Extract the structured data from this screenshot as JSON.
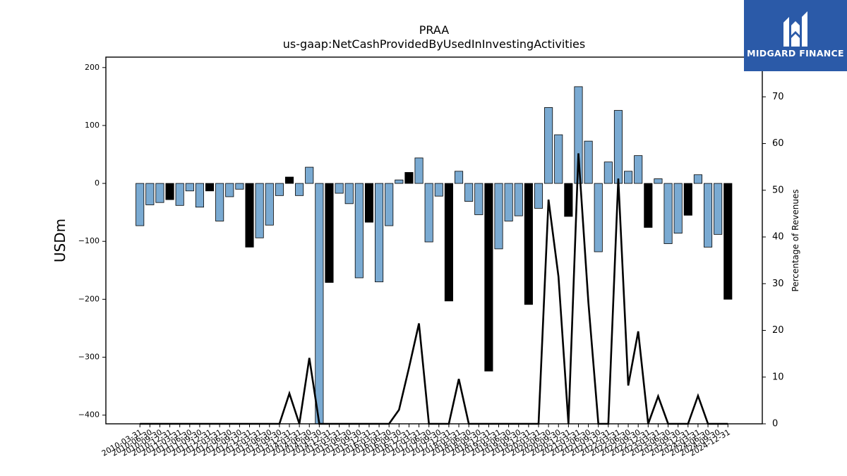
{
  "chart_data": {
    "type": "bar+line",
    "title": "PRAA",
    "subtitle": "us-gaap:NetCashProvidedByUsedInInvestingActivities",
    "ylabel": "USDm",
    "y2label": "Percentage of Revenues",
    "ylim": [
      -415,
      218
    ],
    "y2lim": [
      0,
      78.5
    ],
    "yticks": [
      200,
      100,
      0,
      -100,
      -200,
      -300,
      -400
    ],
    "y2ticks": [
      0,
      10,
      20,
      30,
      40,
      50,
      60,
      70
    ],
    "x_tick_labels": [
      "2010-03-31",
      "2010-06-30",
      "2010-09-30",
      "2010-12-31",
      "2011-03-31",
      "2011-06-30",
      "2011-09-30",
      "2011-12-31",
      "2012-03-31",
      "2012-06-30",
      "2012-09-30",
      "2012-12-31",
      "2013-03-31",
      "2013-06-30",
      "2013-09-30",
      "2013-12-31",
      "2014-03-31",
      "2014-06-30",
      "2014-09-30",
      "2014-12-31",
      "2015-03-31",
      "2015-06-30",
      "2015-09-30",
      "2015-12-31",
      "2016-03-31",
      "2016-06-30",
      "2016-09-30",
      "2016-12-31",
      "2017-03-31",
      "2017-06-30",
      "2017-09-30",
      "2017-12-31",
      "2018-03-31",
      "2018-06-30",
      "2018-09-30",
      "2018-12-31",
      "2019-03-31",
      "2019-06-30",
      "2019-09-30",
      "2019-12-31",
      "2020-03-31",
      "2020-06-30",
      "2020-09-30",
      "2020-12-31",
      "2021-03-31",
      "2021-06-30",
      "2021-09-30",
      "2021-12-31",
      "2022-03-31",
      "2022-06-30",
      "2022-09-30",
      "2022-12-31",
      "2023-03-31",
      "2023-06-30",
      "2023-09-30",
      "2023-12-31",
      "2024-03-31",
      "2024-06-30",
      "2024-09-30",
      "2024-12-31"
    ],
    "series": [
      {
        "values": [
          -73,
          -37,
          -33,
          -28,
          -38,
          -13,
          -41,
          -13,
          -65,
          -23,
          -10,
          -110,
          -94,
          -72,
          -21,
          11,
          -21,
          28,
          -415,
          -171,
          -17,
          -35,
          -163,
          -67,
          -170,
          -73,
          6,
          19,
          44,
          -101,
          -22,
          -203,
          21,
          -31,
          -54,
          -324,
          -113,
          -65,
          -56,
          -209,
          -43,
          131,
          84,
          -57,
          167,
          73,
          -118,
          37,
          126,
          21,
          48,
          -76,
          8,
          -104,
          -86,
          -55,
          15,
          -110,
          -88,
          -200
        ]
      },
      {
        "values": [
          0,
          0,
          0,
          0,
          0,
          0,
          0,
          0,
          0,
          0,
          0,
          0,
          0,
          0,
          0,
          6.5,
          0,
          14.1,
          0,
          0,
          0,
          0,
          0,
          0,
          0,
          0,
          3,
          12,
          21.5,
          0,
          0,
          0,
          9.6,
          0,
          0,
          0,
          0,
          0,
          0,
          0,
          0,
          48,
          31.5,
          0,
          57.9,
          26,
          0,
          0,
          52.5,
          8.2,
          19.8,
          0,
          5.9,
          0,
          0,
          0,
          6,
          0,
          0,
          0
        ]
      }
    ]
  },
  "bar_colors": {
    "positive_growth": "#000000",
    "default": "#7aaad2"
  },
  "bar_dark_flags": [
    0,
    0,
    0,
    1,
    0,
    0,
    0,
    1,
    0,
    0,
    0,
    1,
    0,
    0,
    0,
    1,
    0,
    0,
    0,
    1,
    0,
    0,
    0,
    1,
    0,
    0,
    0,
    1,
    0,
    0,
    0,
    1,
    0,
    0,
    0,
    1,
    0,
    0,
    0,
    1,
    0,
    0,
    0,
    1,
    0,
    0,
    0,
    0,
    0,
    0,
    0,
    1,
    0,
    0,
    0,
    1,
    0,
    0,
    0,
    1
  ],
  "logo": {
    "text": "MIDGARD FINANCE",
    "icon": "midgard-logo-icon",
    "color": "#2b5aa8"
  }
}
